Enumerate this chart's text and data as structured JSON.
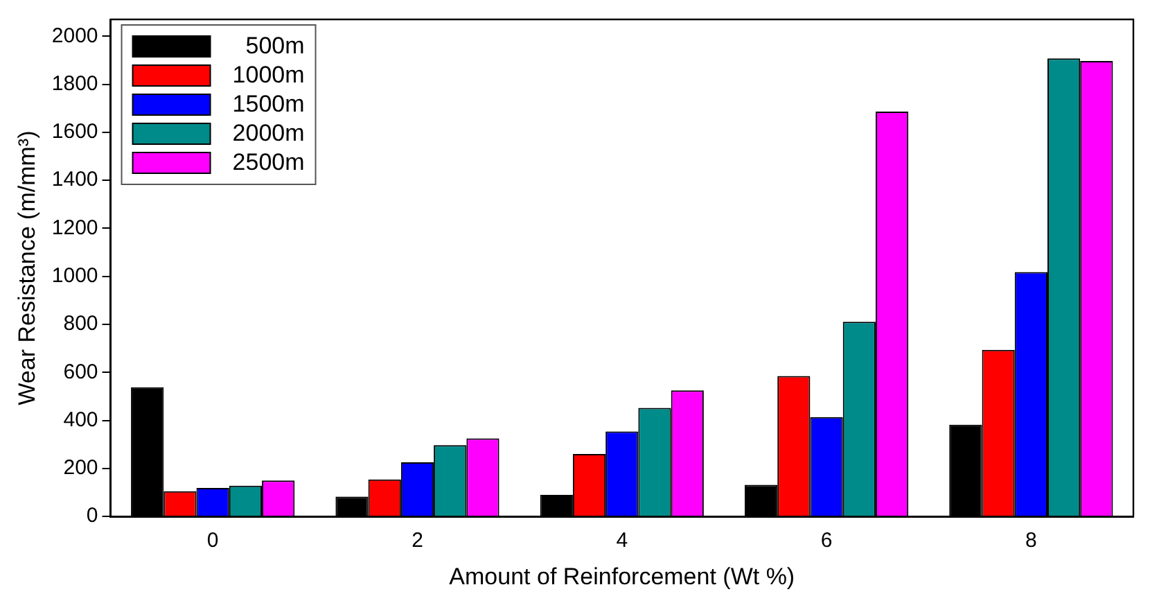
{
  "chart_data": {
    "type": "bar",
    "xlabel": "Amount of Reinforcement (Wt %)",
    "ylabel": "Wear Resistance (m/mm³)",
    "categories": [
      "0",
      "2",
      "4",
      "6",
      "8"
    ],
    "series": [
      {
        "name": "500m",
        "color": "#000000",
        "values": [
          538,
          83,
          90,
          132,
          382
        ]
      },
      {
        "name": "1000m",
        "color": "#ff0000",
        "values": [
          105,
          154,
          260,
          585,
          694
        ]
      },
      {
        "name": "1500m",
        "color": "#0000ff",
        "values": [
          119,
          226,
          354,
          414,
          1018
        ]
      },
      {
        "name": "2000m",
        "color": "#008b8b",
        "values": [
          128,
          297,
          452,
          811,
          1908
        ]
      },
      {
        "name": "2500m",
        "color": "#ff00ff",
        "values": [
          150,
          325,
          525,
          1686,
          1897
        ]
      }
    ],
    "ylim": [
      0,
      2070
    ],
    "yticks": [
      0,
      200,
      400,
      600,
      800,
      1000,
      1200,
      1400,
      1600,
      1800,
      2000
    ],
    "grid": false,
    "legend": "top left"
  }
}
